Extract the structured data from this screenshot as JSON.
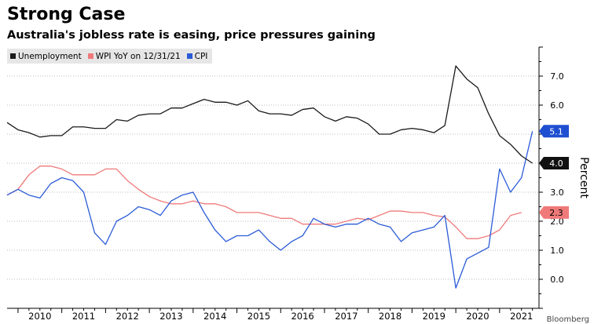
{
  "title": "Strong Case",
  "subtitle": "Australia's jobless rate is easing, price pressures gaining",
  "legend": [
    {
      "label": "Unemployment",
      "color": "#1a1a1a"
    },
    {
      "label": "WPI YoY on 12/31/21",
      "color": "#f07a7a"
    },
    {
      "label": "CPI",
      "color": "#2a5bd7"
    }
  ],
  "source": "Bloomberg",
  "chart_data": {
    "type": "line",
    "title": "Strong Case",
    "subtitle": "Australia's jobless rate is easing, price pressures gaining",
    "xlabel": "",
    "ylabel": "Percent",
    "xlim": [
      2009.75,
      2021.9
    ],
    "ylim": [
      -1,
      8
    ],
    "yticks": [
      0,
      1,
      2,
      3,
      4,
      5,
      6,
      7
    ],
    "ytick_labels": [
      "0.0",
      "1.0",
      "2.0",
      "3.0",
      "4.0",
      "5.0",
      "6.0",
      "7.0"
    ],
    "xticks": [
      2010,
      2011,
      2012,
      2013,
      2014,
      2015,
      2016,
      2017,
      2018,
      2019,
      2020,
      2021
    ],
    "xtick_labels": [
      "2010",
      "2011",
      "2012",
      "2013",
      "2014",
      "2015",
      "2016",
      "2017",
      "2018",
      "2019",
      "2020",
      "2021"
    ],
    "series": [
      {
        "name": "Unemployment",
        "color": "#1a1a1a",
        "end_label": "4.0",
        "x": [
          2009.75,
          2010.0,
          2010.25,
          2010.5,
          2010.75,
          2011.0,
          2011.25,
          2011.5,
          2011.75,
          2012.0,
          2012.25,
          2012.5,
          2012.75,
          2013.0,
          2013.25,
          2013.5,
          2013.75,
          2014.0,
          2014.25,
          2014.5,
          2014.75,
          2015.0,
          2015.25,
          2015.5,
          2015.75,
          2016.0,
          2016.25,
          2016.5,
          2016.75,
          2017.0,
          2017.25,
          2017.5,
          2017.75,
          2018.0,
          2018.25,
          2018.5,
          2018.75,
          2019.0,
          2019.25,
          2019.5,
          2019.75,
          2020.0,
          2020.25,
          2020.5,
          2020.75,
          2021.0,
          2021.25,
          2021.5,
          2021.75
        ],
        "values": [
          5.4,
          5.15,
          5.05,
          4.9,
          4.95,
          4.95,
          5.25,
          5.25,
          5.2,
          5.2,
          5.5,
          5.45,
          5.65,
          5.7,
          5.7,
          5.9,
          5.9,
          6.05,
          6.2,
          6.1,
          6.1,
          6.0,
          6.15,
          5.8,
          5.7,
          5.7,
          5.65,
          5.85,
          5.9,
          5.6,
          5.45,
          5.6,
          5.55,
          5.35,
          5.0,
          5.0,
          5.15,
          5.2,
          5.15,
          5.05,
          5.3,
          7.35,
          6.9,
          6.6,
          5.7,
          4.95,
          4.65,
          4.25,
          4.0
        ]
      },
      {
        "name": "WPI YoY on 12/31/21",
        "color": "#f07a7a",
        "end_label": "2.3",
        "x": [
          2009.75,
          2010.0,
          2010.25,
          2010.5,
          2010.75,
          2011.0,
          2011.25,
          2011.5,
          2011.75,
          2012.0,
          2012.25,
          2012.5,
          2012.75,
          2013.0,
          2013.25,
          2013.5,
          2013.75,
          2014.0,
          2014.25,
          2014.5,
          2014.75,
          2015.0,
          2015.25,
          2015.5,
          2015.75,
          2016.0,
          2016.25,
          2016.5,
          2016.75,
          2017.0,
          2017.25,
          2017.5,
          2017.75,
          2018.0,
          2018.25,
          2018.5,
          2018.75,
          2019.0,
          2019.25,
          2019.5,
          2019.75,
          2020.0,
          2020.25,
          2020.5,
          2020.75,
          2021.0,
          2021.25,
          2021.5
        ],
        "values": [
          2.9,
          3.1,
          3.6,
          3.9,
          3.9,
          3.8,
          3.6,
          3.6,
          3.6,
          3.8,
          3.8,
          3.4,
          3.1,
          2.85,
          2.7,
          2.6,
          2.6,
          2.7,
          2.6,
          2.6,
          2.5,
          2.3,
          2.3,
          2.3,
          2.2,
          2.1,
          2.1,
          1.9,
          1.9,
          1.9,
          1.9,
          2.0,
          2.1,
          2.05,
          2.2,
          2.35,
          2.35,
          2.3,
          2.3,
          2.2,
          2.15,
          1.8,
          1.4,
          1.4,
          1.5,
          1.7,
          2.2,
          2.3
        ]
      },
      {
        "name": "CPI",
        "color": "#2a5bd7",
        "end_label": "5.1",
        "x": [
          2009.75,
          2010.0,
          2010.25,
          2010.5,
          2010.75,
          2011.0,
          2011.25,
          2011.5,
          2011.75,
          2012.0,
          2012.25,
          2012.5,
          2012.75,
          2013.0,
          2013.25,
          2013.5,
          2013.75,
          2014.0,
          2014.25,
          2014.5,
          2014.75,
          2015.0,
          2015.25,
          2015.5,
          2015.75,
          2016.0,
          2016.25,
          2016.5,
          2016.75,
          2017.0,
          2017.25,
          2017.5,
          2017.75,
          2018.0,
          2018.25,
          2018.5,
          2018.75,
          2019.0,
          2019.25,
          2019.5,
          2019.75,
          2020.0,
          2020.25,
          2020.5,
          2020.75,
          2021.0,
          2021.25,
          2021.5,
          2021.75
        ],
        "values": [
          2.9,
          3.1,
          2.9,
          2.8,
          3.3,
          3.5,
          3.4,
          3.0,
          1.6,
          1.2,
          2.0,
          2.2,
          2.5,
          2.4,
          2.2,
          2.7,
          2.9,
          3.0,
          2.3,
          1.7,
          1.3,
          1.5,
          1.5,
          1.7,
          1.3,
          1.0,
          1.3,
          1.5,
          2.1,
          1.9,
          1.8,
          1.9,
          1.9,
          2.1,
          1.9,
          1.8,
          1.3,
          1.6,
          1.7,
          1.8,
          2.2,
          -0.3,
          0.7,
          0.9,
          1.1,
          3.8,
          3.0,
          3.5,
          5.1
        ]
      }
    ]
  }
}
